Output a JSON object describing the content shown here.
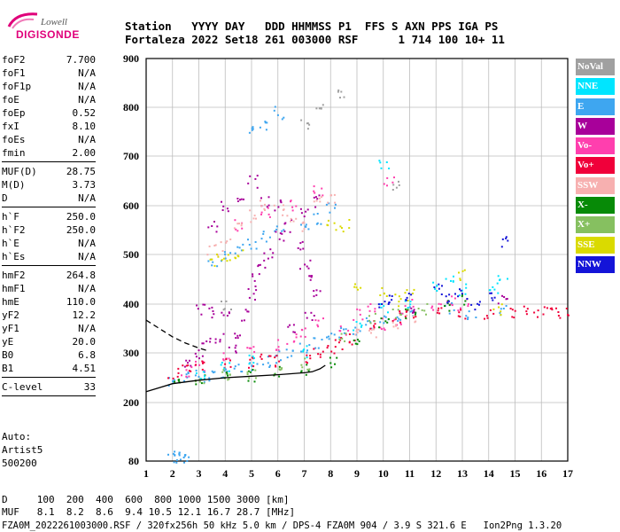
{
  "logo": {
    "line1": "Lowell",
    "line2": "DIGISONDE"
  },
  "header": {
    "line1": "Station   YYYY DAY   DDD HHMMSS P1  FFS S AXN PPS IGA PS",
    "line2": "Fortaleza 2022 Set18 261 003000 RSF      1 714 100 10+ 11"
  },
  "params_groups": [
    [
      [
        "foF2",
        "7.700"
      ],
      [
        "foF1",
        "N/A"
      ],
      [
        "foF1p",
        "N/A"
      ],
      [
        "foE",
        "N/A"
      ],
      [
        "foEp",
        "0.52"
      ],
      [
        "fxI",
        "8.10"
      ],
      [
        "foEs",
        "N/A"
      ],
      [
        "fmin",
        "2.00"
      ]
    ],
    [
      [
        "MUF(D)",
        "28.75"
      ],
      [
        "M(D)",
        "3.73"
      ],
      [
        "D",
        "N/A"
      ]
    ],
    [
      [
        "h`F",
        "250.0"
      ],
      [
        "h`F2",
        "250.0"
      ],
      [
        "h`E",
        "N/A"
      ],
      [
        "h`Es",
        "N/A"
      ]
    ],
    [
      [
        "hmF2",
        "264.8"
      ],
      [
        "hmF1",
        "N/A"
      ],
      [
        "hmE",
        "110.0"
      ],
      [
        "yF2",
        "12.2"
      ],
      [
        "yF1",
        "N/A"
      ],
      [
        "yE",
        "20.0"
      ],
      [
        "B0",
        "6.8"
      ],
      [
        "B1",
        "4.51"
      ]
    ],
    [
      [
        "C-level",
        "33"
      ]
    ]
  ],
  "auto_lines": [
    "Auto:",
    "Artist5",
    "500200"
  ],
  "legend": [
    {
      "label": "NoVal",
      "color": "#a0a0a0"
    },
    {
      "label": "NNE",
      "color": "#00e5ff"
    },
    {
      "label": "E",
      "color": "#3ea6f0"
    },
    {
      "label": "W",
      "color": "#a8009a"
    },
    {
      "label": "Vo-",
      "color": "#ff3fae"
    },
    {
      "label": "Vo+",
      "color": "#f0003a"
    },
    {
      "label": "SSW",
      "color": "#f7b0b0"
    },
    {
      "label": "X-",
      "color": "#078a07"
    },
    {
      "label": "X+",
      "color": "#86c060"
    },
    {
      "label": "SSE",
      "color": "#dada00"
    },
    {
      "label": "NNW",
      "color": "#1414d8"
    }
  ],
  "footer": {
    "line1": "D     100  200  400  600  800 1000 1500 3000 [km]",
    "line2": "MUF   8.1  8.2  8.6  9.4 10.5 12.1 16.7 28.7 [MHz]",
    "line3": "FZA0M_2022261003000.RSF / 320fx256h 50 kHz 5.0 km / DPS-4 FZA0M 904 / 3.9 S 321.6 E   Ion2Png 1.3.20"
  },
  "chart_data": {
    "type": "scatter",
    "x_ticks": [
      "1",
      "2",
      "3",
      "4",
      "5",
      "6",
      "7",
      "8",
      "9",
      "10",
      "11",
      "12",
      "13",
      "14",
      "15",
      "16",
      "17"
    ],
    "y_ticks": [
      "80",
      "200",
      "300",
      "400",
      "500",
      "600",
      "700",
      "800",
      "900"
    ],
    "xlim": [
      1,
      17
    ],
    "y_tick_values": [
      80,
      200,
      300,
      400,
      500,
      600,
      700,
      800,
      900
    ],
    "grid": true,
    "series": [
      {
        "name": "E",
        "color": "#3ea6f0",
        "points": [
          [
            2.0,
            245
          ],
          [
            2.5,
            252
          ],
          [
            3,
            255
          ],
          [
            3.5,
            258
          ],
          [
            4,
            262
          ],
          [
            4.5,
            268
          ],
          [
            5,
            275
          ],
          [
            5.5,
            285
          ],
          [
            6,
            293
          ],
          [
            6.5,
            305
          ],
          [
            7,
            312
          ],
          [
            7.5,
            320
          ],
          [
            8,
            330
          ],
          [
            8.5,
            340
          ],
          [
            9,
            350
          ],
          [
            9.5,
            362
          ],
          [
            10,
            375
          ],
          [
            10.5,
            380
          ],
          [
            11,
            385
          ],
          [
            12.5,
            395
          ],
          [
            13.3,
            375
          ],
          [
            14.5,
            390
          ],
          [
            3.5,
            480
          ],
          [
            4,
            495
          ],
          [
            4.5,
            510
          ],
          [
            5,
            525
          ],
          [
            5.5,
            540
          ],
          [
            6,
            555
          ],
          [
            7,
            560
          ],
          [
            7.5,
            575
          ],
          [
            8,
            600
          ],
          [
            5,
            750
          ],
          [
            5.5,
            760
          ],
          [
            6,
            790
          ],
          [
            2.0,
            90
          ],
          [
            2.2,
            90
          ],
          [
            2.4,
            90
          ],
          [
            2.6,
            90
          ]
        ]
      },
      {
        "name": "W",
        "color": "#a8009a",
        "points": [
          [
            2.5,
            280
          ],
          [
            3,
            300
          ],
          [
            3.3,
            320
          ],
          [
            3.8,
            330
          ],
          [
            4.2,
            310
          ],
          [
            4.5,
            340
          ],
          [
            4.8,
            380
          ],
          [
            5,
            420
          ],
          [
            5.2,
            450
          ],
          [
            5.4,
            480
          ],
          [
            5.6,
            500
          ],
          [
            6,
            540
          ],
          [
            6.3,
            560
          ],
          [
            6.8,
            520
          ],
          [
            7,
            480
          ],
          [
            7.3,
            450
          ],
          [
            7.5,
            420
          ],
          [
            3.5,
            560
          ],
          [
            4,
            600
          ],
          [
            4.5,
            620
          ],
          [
            5,
            650
          ],
          [
            5.5,
            610
          ],
          [
            6,
            600
          ],
          [
            7,
            590
          ],
          [
            7.5,
            610
          ],
          [
            3,
            390
          ],
          [
            3.5,
            385
          ],
          [
            4,
            390
          ],
          [
            7.2,
            380
          ],
          [
            6.5,
            350
          ],
          [
            11,
            385
          ],
          [
            14.5,
            410
          ]
        ]
      },
      {
        "name": "Vo-",
        "color": "#ff3fae",
        "points": [
          [
            2.5,
            265
          ],
          [
            3,
            272
          ],
          [
            4,
            290
          ],
          [
            5,
            305
          ],
          [
            6,
            320
          ],
          [
            6.5,
            330
          ],
          [
            7,
            345
          ],
          [
            7.5,
            360
          ],
          [
            8.5,
            350
          ],
          [
            9,
            380
          ],
          [
            9.5,
            395
          ],
          [
            10,
            360
          ],
          [
            10.5,
            370
          ],
          [
            11,
            400
          ],
          [
            12,
            390
          ],
          [
            12.5,
            410
          ],
          [
            13,
            400
          ],
          [
            4.5,
            560
          ],
          [
            5.5,
            590
          ],
          [
            6.5,
            600
          ],
          [
            7.5,
            630
          ],
          [
            10.2,
            650
          ]
        ]
      },
      {
        "name": "Vo+",
        "color": "#f0003a",
        "points": [
          [
            2,
            260
          ],
          [
            2.5,
            270
          ],
          [
            3,
            275
          ],
          [
            4,
            280
          ],
          [
            5,
            280
          ],
          [
            5.5,
            290
          ],
          [
            6,
            285
          ],
          [
            7,
            290
          ],
          [
            7.5,
            300
          ],
          [
            8,
            305
          ],
          [
            8.3,
            320
          ],
          [
            8.7,
            330
          ],
          [
            9.5,
            355
          ],
          [
            10.5,
            375
          ],
          [
            11,
            380
          ],
          [
            12,
            395
          ],
          [
            13,
            380
          ],
          [
            14,
            380
          ],
          [
            15,
            385
          ],
          [
            15.5,
            385
          ],
          [
            16,
            385
          ],
          [
            16.5,
            385
          ],
          [
            16.8,
            385
          ]
        ]
      },
      {
        "name": "SSW",
        "color": "#f7b0b0",
        "points": [
          [
            3.5,
            510
          ],
          [
            4,
            520
          ],
          [
            4.5,
            560
          ],
          [
            5,
            580
          ],
          [
            5.5,
            600
          ],
          [
            6,
            590
          ],
          [
            6.5,
            570
          ],
          [
            7,
            560
          ],
          [
            7.5,
            610
          ],
          [
            8,
            620
          ],
          [
            10.5,
            360
          ],
          [
            11,
            370
          ],
          [
            9,
            340
          ],
          [
            9.5,
            345
          ]
        ]
      },
      {
        "name": "X-",
        "color": "#078a07",
        "points": [
          [
            2.2,
            242
          ],
          [
            3,
            248
          ],
          [
            4,
            252
          ],
          [
            5,
            256
          ],
          [
            6,
            262
          ],
          [
            7,
            268
          ],
          [
            8,
            280
          ],
          [
            9,
            320
          ],
          [
            10,
            360
          ],
          [
            11,
            380
          ],
          [
            12.3,
            400
          ],
          [
            13,
            410
          ]
        ]
      },
      {
        "name": "X+",
        "color": "#86c060",
        "points": [
          [
            3,
            250
          ],
          [
            4,
            255
          ],
          [
            5,
            258
          ],
          [
            6,
            265
          ],
          [
            7,
            280
          ],
          [
            8.5,
            330
          ],
          [
            9.5,
            370
          ],
          [
            10.5,
            380
          ],
          [
            11.5,
            390
          ]
        ]
      },
      {
        "name": "SSE",
        "color": "#dada00",
        "points": [
          [
            3.5,
            490
          ],
          [
            4,
            500
          ],
          [
            4.5,
            505
          ],
          [
            8,
            560
          ],
          [
            8.5,
            560
          ],
          [
            10,
            430
          ],
          [
            10.5,
            410
          ],
          [
            11,
            420
          ],
          [
            13,
            460
          ],
          [
            14.3,
            390
          ],
          [
            9,
            440
          ]
        ]
      },
      {
        "name": "NNE",
        "color": "#00e5ff",
        "points": [
          [
            3,
            260
          ],
          [
            4,
            270
          ],
          [
            5,
            285
          ],
          [
            7,
            305
          ],
          [
            9,
            360
          ],
          [
            10,
            390
          ],
          [
            11,
            400
          ],
          [
            12,
            440
          ],
          [
            12.5,
            455
          ],
          [
            13,
            430
          ],
          [
            14.2,
            430
          ],
          [
            14.5,
            450
          ],
          [
            10,
            680
          ]
        ]
      },
      {
        "name": "NNW",
        "color": "#1414d8",
        "points": [
          [
            10,
            400
          ],
          [
            11,
            420
          ],
          [
            12,
            430
          ],
          [
            12.5,
            410
          ],
          [
            13,
            420
          ],
          [
            13.5,
            395
          ],
          [
            14,
            420
          ],
          [
            14.6,
            525
          ],
          [
            10.2,
            410
          ]
        ]
      },
      {
        "name": "NoVal",
        "color": "#a0a0a0",
        "points": [
          [
            4,
            400
          ],
          [
            7,
            770
          ],
          [
            7.5,
            800
          ],
          [
            8.3,
            830
          ],
          [
            10.5,
            640
          ]
        ]
      }
    ],
    "trace_solid": [
      [
        1,
        222
      ],
      [
        1.5,
        230
      ],
      [
        2,
        238
      ],
      [
        3,
        245
      ],
      [
        4,
        250
      ],
      [
        5,
        253
      ],
      [
        6,
        256
      ],
      [
        7,
        260
      ],
      [
        7.3,
        262
      ],
      [
        7.6,
        268
      ],
      [
        7.8,
        275
      ]
    ],
    "trace_dashed": [
      [
        1,
        367
      ],
      [
        1.5,
        350
      ],
      [
        2,
        333
      ],
      [
        2.5,
        320
      ],
      [
        3,
        310
      ],
      [
        3.3,
        305
      ]
    ]
  }
}
